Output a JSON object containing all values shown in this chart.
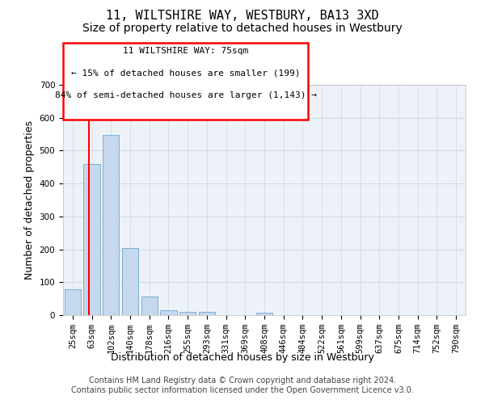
{
  "title": "11, WILTSHIRE WAY, WESTBURY, BA13 3XD",
  "subtitle": "Size of property relative to detached houses in Westbury",
  "xlabel": "Distribution of detached houses by size in Westbury",
  "ylabel": "Number of detached properties",
  "categories": [
    "25sqm",
    "63sqm",
    "102sqm",
    "140sqm",
    "178sqm",
    "216sqm",
    "255sqm",
    "293sqm",
    "331sqm",
    "369sqm",
    "408sqm",
    "446sqm",
    "484sqm",
    "522sqm",
    "561sqm",
    "599sqm",
    "637sqm",
    "675sqm",
    "714sqm",
    "752sqm",
    "790sqm"
  ],
  "bar_values": [
    78,
    460,
    548,
    204,
    57,
    15,
    10,
    10,
    0,
    0,
    8,
    0,
    0,
    0,
    0,
    0,
    0,
    0,
    0,
    0,
    0
  ],
  "bar_color": "#c5d8ed",
  "bar_edge_color": "#7bafd4",
  "grid_color": "#d0d8e8",
  "bg_color": "#edf2f8",
  "annotation_text_line1": "11 WILTSHIRE WAY: 75sqm",
  "annotation_text_line2": "← 15% of detached houses are smaller (199)",
  "annotation_text_line3": "84% of semi-detached houses are larger (1,143) →",
  "ylim": [
    0,
    700
  ],
  "yticks": [
    0,
    100,
    200,
    300,
    400,
    500,
    600,
    700
  ],
  "footer_line1": "Contains HM Land Registry data © Crown copyright and database right 2024.",
  "footer_line2": "Contains public sector information licensed under the Open Government Licence v3.0.",
  "title_fontsize": 11,
  "subtitle_fontsize": 10,
  "axis_label_fontsize": 9,
  "tick_fontsize": 7.5,
  "annotation_fontsize": 8,
  "footer_fontsize": 7
}
